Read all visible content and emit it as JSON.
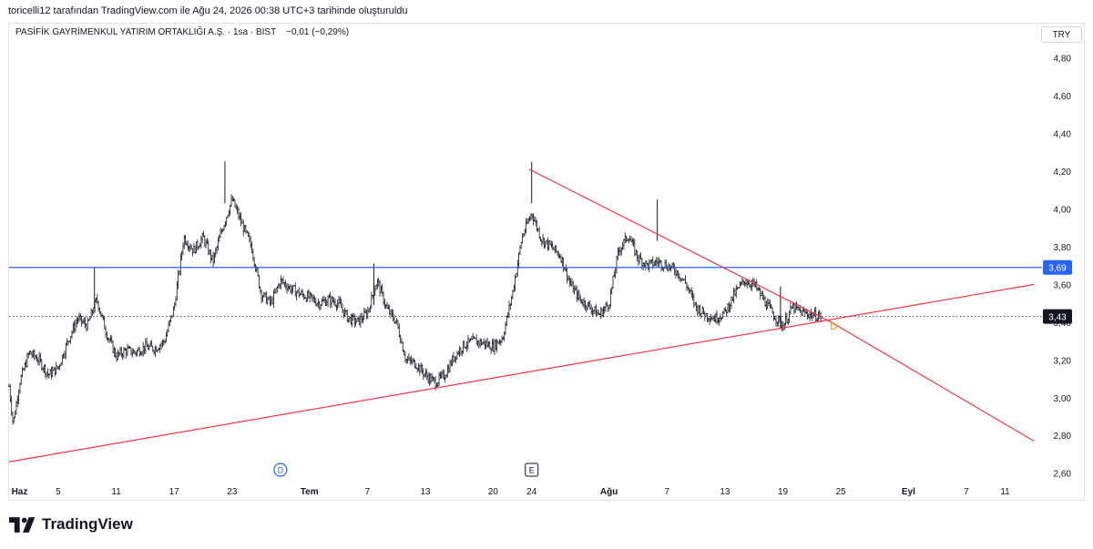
{
  "header_note": "toricelli12 tarafından TradingView.com ile Ağu 24, 2026 00:38 UTC+3 tarihinde oluşturuldu",
  "legend": {
    "symbol": "PASİFİK GAYRİMENKUL YATIRIM ORTAKLIĞI A.Ş.",
    "interval": "1sa",
    "exchange": "BIST",
    "change": "−0,01 (−0,29%)"
  },
  "currency": "TRY",
  "brand": {
    "name": "TradingView"
  },
  "colors": {
    "candle": "#131722",
    "support_line": "#2962ff",
    "trend_lines": "#f23645",
    "last_price_label": "#131722",
    "marker_D": "#ff9800",
    "event_D": "#2962ff"
  },
  "chart_data": {
    "type": "candlestick",
    "y_range": [
      2.56,
      4.88
    ],
    "y_ticks": [
      {
        "v": 2.6,
        "label": "2,60"
      },
      {
        "v": 2.8,
        "label": "2,80"
      },
      {
        "v": 3.0,
        "label": "3,00"
      },
      {
        "v": 3.2,
        "label": "3,20"
      },
      {
        "v": 3.4,
        "label": "3,40"
      },
      {
        "v": 3.6,
        "label": "3,60"
      },
      {
        "v": 3.8,
        "label": "3,80"
      },
      {
        "v": 4.0,
        "label": "4,00"
      },
      {
        "v": 4.2,
        "label": "4,20"
      },
      {
        "v": 4.4,
        "label": "4,40"
      },
      {
        "v": 4.6,
        "label": "4,60"
      },
      {
        "v": 4.8,
        "label": "4,80"
      }
    ],
    "x_range": [
      "2026-05-31T10:00",
      "2026-09-14T18:00"
    ],
    "x_ticks": [
      {
        "t": "2026-06-01T12:00",
        "label": "Haz",
        "bold": true
      },
      {
        "t": "2026-06-05T12:00",
        "label": "5"
      },
      {
        "t": "2026-06-11T12:00",
        "label": "11"
      },
      {
        "t": "2026-06-17T12:00",
        "label": "17"
      },
      {
        "t": "2026-06-23T12:00",
        "label": "23"
      },
      {
        "t": "2026-07-01T12:00",
        "label": "Tem",
        "bold": true
      },
      {
        "t": "2026-07-07T12:00",
        "label": "7"
      },
      {
        "t": "2026-07-13T12:00",
        "label": "13"
      },
      {
        "t": "2026-07-20T12:00",
        "label": "20"
      },
      {
        "t": "2026-07-24T12:00",
        "label": "24"
      },
      {
        "t": "2026-08-01T12:00",
        "label": "Ağu",
        "bold": true
      },
      {
        "t": "2026-08-07T12:00",
        "label": "7"
      },
      {
        "t": "2026-08-13T12:00",
        "label": "13"
      },
      {
        "t": "2026-08-19T12:00",
        "label": "19"
      },
      {
        "t": "2026-08-25T12:00",
        "label": "25"
      },
      {
        "t": "2026-09-01T12:00",
        "label": "Eyl",
        "bold": true
      },
      {
        "t": "2026-09-07T12:00",
        "label": "7"
      },
      {
        "t": "2026-09-11T12:00",
        "label": "11"
      }
    ],
    "price_path": [
      [
        "2026-05-31T10:00",
        3.06
      ],
      [
        "2026-05-31T20:00",
        2.86
      ],
      [
        "2026-06-01T12:00",
        3.08
      ],
      [
        "2026-06-02T12:00",
        3.24
      ],
      [
        "2026-06-03T12:00",
        3.2
      ],
      [
        "2026-06-04T12:00",
        3.12
      ],
      [
        "2026-06-05T12:00",
        3.16
      ],
      [
        "2026-06-06T12:00",
        3.3
      ],
      [
        "2026-06-07T12:00",
        3.42
      ],
      [
        "2026-06-08T12:00",
        3.38
      ],
      [
        "2026-06-09T12:00",
        3.52
      ],
      [
        "2026-06-10T12:00",
        3.34
      ],
      [
        "2026-06-11T12:00",
        3.22
      ],
      [
        "2026-06-12T12:00",
        3.25
      ],
      [
        "2026-06-13T12:00",
        3.24
      ],
      [
        "2026-06-14T12:00",
        3.27
      ],
      [
        "2026-06-15T12:00",
        3.26
      ],
      [
        "2026-06-16T12:00",
        3.3
      ],
      [
        "2026-06-17T12:00",
        3.48
      ],
      [
        "2026-06-18T12:00",
        3.85
      ],
      [
        "2026-06-19T12:00",
        3.78
      ],
      [
        "2026-06-20T12:00",
        3.85
      ],
      [
        "2026-06-21T12:00",
        3.72
      ],
      [
        "2026-06-22T12:00",
        3.9
      ],
      [
        "2026-06-23T12:00",
        4.05
      ],
      [
        "2026-06-24T12:00",
        3.92
      ],
      [
        "2026-06-25T12:00",
        3.8
      ],
      [
        "2026-06-26T12:00",
        3.55
      ],
      [
        "2026-06-27T12:00",
        3.5
      ],
      [
        "2026-06-28T12:00",
        3.62
      ],
      [
        "2026-06-29T12:00",
        3.58
      ],
      [
        "2026-06-30T12:00",
        3.55
      ],
      [
        "2026-07-01T12:00",
        3.53
      ],
      [
        "2026-07-02T12:00",
        3.5
      ],
      [
        "2026-07-03T12:00",
        3.52
      ],
      [
        "2026-07-04T12:00",
        3.5
      ],
      [
        "2026-07-05T12:00",
        3.42
      ],
      [
        "2026-07-06T12:00",
        3.4
      ],
      [
        "2026-07-07T12:00",
        3.45
      ],
      [
        "2026-07-08T12:00",
        3.62
      ],
      [
        "2026-07-09T12:00",
        3.47
      ],
      [
        "2026-07-10T12:00",
        3.4
      ],
      [
        "2026-07-11T12:00",
        3.2
      ],
      [
        "2026-07-12T12:00",
        3.18
      ],
      [
        "2026-07-13T12:00",
        3.12
      ],
      [
        "2026-07-14T12:00",
        3.08
      ],
      [
        "2026-07-15T12:00",
        3.12
      ],
      [
        "2026-07-16T12:00",
        3.22
      ],
      [
        "2026-07-17T12:00",
        3.28
      ],
      [
        "2026-07-18T12:00",
        3.3
      ],
      [
        "2026-07-19T12:00",
        3.29
      ],
      [
        "2026-07-20T12:00",
        3.27
      ],
      [
        "2026-07-21T12:00",
        3.32
      ],
      [
        "2026-07-22T12:00",
        3.55
      ],
      [
        "2026-07-23T12:00",
        3.85
      ],
      [
        "2026-07-24T12:00",
        3.98
      ],
      [
        "2026-07-25T12:00",
        3.84
      ],
      [
        "2026-07-26T12:00",
        3.8
      ],
      [
        "2026-07-27T12:00",
        3.75
      ],
      [
        "2026-07-28T12:00",
        3.6
      ],
      [
        "2026-07-29T12:00",
        3.52
      ],
      [
        "2026-07-30T12:00",
        3.48
      ],
      [
        "2026-07-31T12:00",
        3.44
      ],
      [
        "2026-08-01T12:00",
        3.5
      ],
      [
        "2026-08-02T12:00",
        3.78
      ],
      [
        "2026-08-03T12:00",
        3.86
      ],
      [
        "2026-08-04T12:00",
        3.74
      ],
      [
        "2026-08-05T12:00",
        3.7
      ],
      [
        "2026-08-06T12:00",
        3.72
      ],
      [
        "2026-08-07T12:00",
        3.7
      ],
      [
        "2026-08-08T12:00",
        3.67
      ],
      [
        "2026-08-09T12:00",
        3.6
      ],
      [
        "2026-08-10T12:00",
        3.48
      ],
      [
        "2026-08-11T12:00",
        3.44
      ],
      [
        "2026-08-12T12:00",
        3.42
      ],
      [
        "2026-08-13T12:00",
        3.45
      ],
      [
        "2026-08-14T12:00",
        3.55
      ],
      [
        "2026-08-15T12:00",
        3.62
      ],
      [
        "2026-08-16T12:00",
        3.6
      ],
      [
        "2026-08-17T12:00",
        3.52
      ],
      [
        "2026-08-18T12:00",
        3.44
      ],
      [
        "2026-08-19T12:00",
        3.38
      ],
      [
        "2026-08-20T12:00",
        3.48
      ],
      [
        "2026-08-21T12:00",
        3.45
      ],
      [
        "2026-08-22T12:00",
        3.44
      ],
      [
        "2026-08-23T12:00",
        3.43
      ]
    ],
    "spikes": [
      {
        "t": "2026-06-09T06:00",
        "v": 3.69
      },
      {
        "t": "2026-06-22T18:00",
        "v": 4.25
      },
      {
        "t": "2026-07-08T04:00",
        "v": 3.71
      },
      {
        "t": "2026-07-24T12:00",
        "v": 4.25
      },
      {
        "t": "2026-08-06T12:00",
        "v": 4.05
      },
      {
        "t": "2026-08-19T06:00",
        "v": 3.59
      }
    ],
    "horizontal_line": {
      "value": 3.69,
      "label": "3,69"
    },
    "last_price": {
      "value": 3.43,
      "label": "3,43"
    },
    "trend_lines": [
      {
        "name": "support",
        "from": [
          "2026-05-31T10:00",
          2.66
        ],
        "to": [
          "2026-09-14T12:00",
          3.6
        ]
      },
      {
        "name": "resistance",
        "from": [
          "2026-07-24T06:00",
          4.21
        ],
        "to": [
          "2026-08-24T12:00",
          3.4
        ]
      },
      {
        "name": "projection",
        "from": [
          "2026-08-24T12:00",
          3.4
        ],
        "to": [
          "2026-09-14T12:00",
          2.77
        ]
      }
    ],
    "markers": [
      {
        "t": "2026-08-24T18:00",
        "v": 3.38,
        "label": "D"
      }
    ],
    "events": [
      {
        "t": "2026-06-28T12:00",
        "label": "D",
        "shape": "circle"
      },
      {
        "t": "2026-07-24T12:00",
        "label": "E",
        "shape": "square"
      }
    ]
  }
}
